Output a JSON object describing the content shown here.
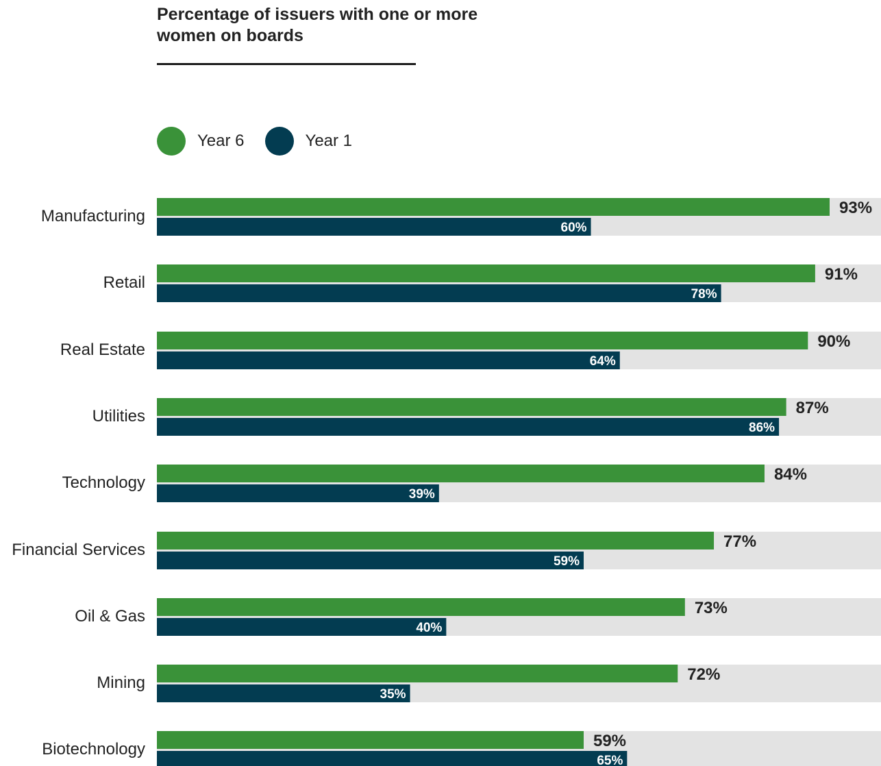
{
  "colors": {
    "year6": "#3a9239",
    "year1": "#033c51",
    "track": "#e3e3e3"
  },
  "chart_data": {
    "type": "bar",
    "orientation": "horizontal",
    "title": "Percentage of issuers with one or more women on boards",
    "xlabel": "",
    "ylabel": "",
    "xlim": [
      0,
      100
    ],
    "grid": false,
    "legend_position": "top-left",
    "categories": [
      "Manufacturing",
      "Retail",
      "Real Estate",
      "Utilities",
      "Technology",
      "Financial Services",
      "Oil & Gas",
      "Mining",
      "Biotechnology"
    ],
    "series": [
      {
        "name": "Year 6",
        "values": [
          93,
          91,
          90,
          87,
          84,
          77,
          73,
          72,
          59
        ],
        "labels": [
          "93%",
          "91%",
          "90%",
          "87%",
          "84%",
          "77%",
          "73%",
          "72%",
          "59%"
        ]
      },
      {
        "name": "Year 1",
        "values": [
          60,
          78,
          64,
          86,
          39,
          59,
          40,
          35,
          65
        ],
        "labels": [
          "60%",
          "78%",
          "64%",
          "86%",
          "39%",
          "59%",
          "40%",
          "35%",
          "65%"
        ]
      }
    ]
  }
}
